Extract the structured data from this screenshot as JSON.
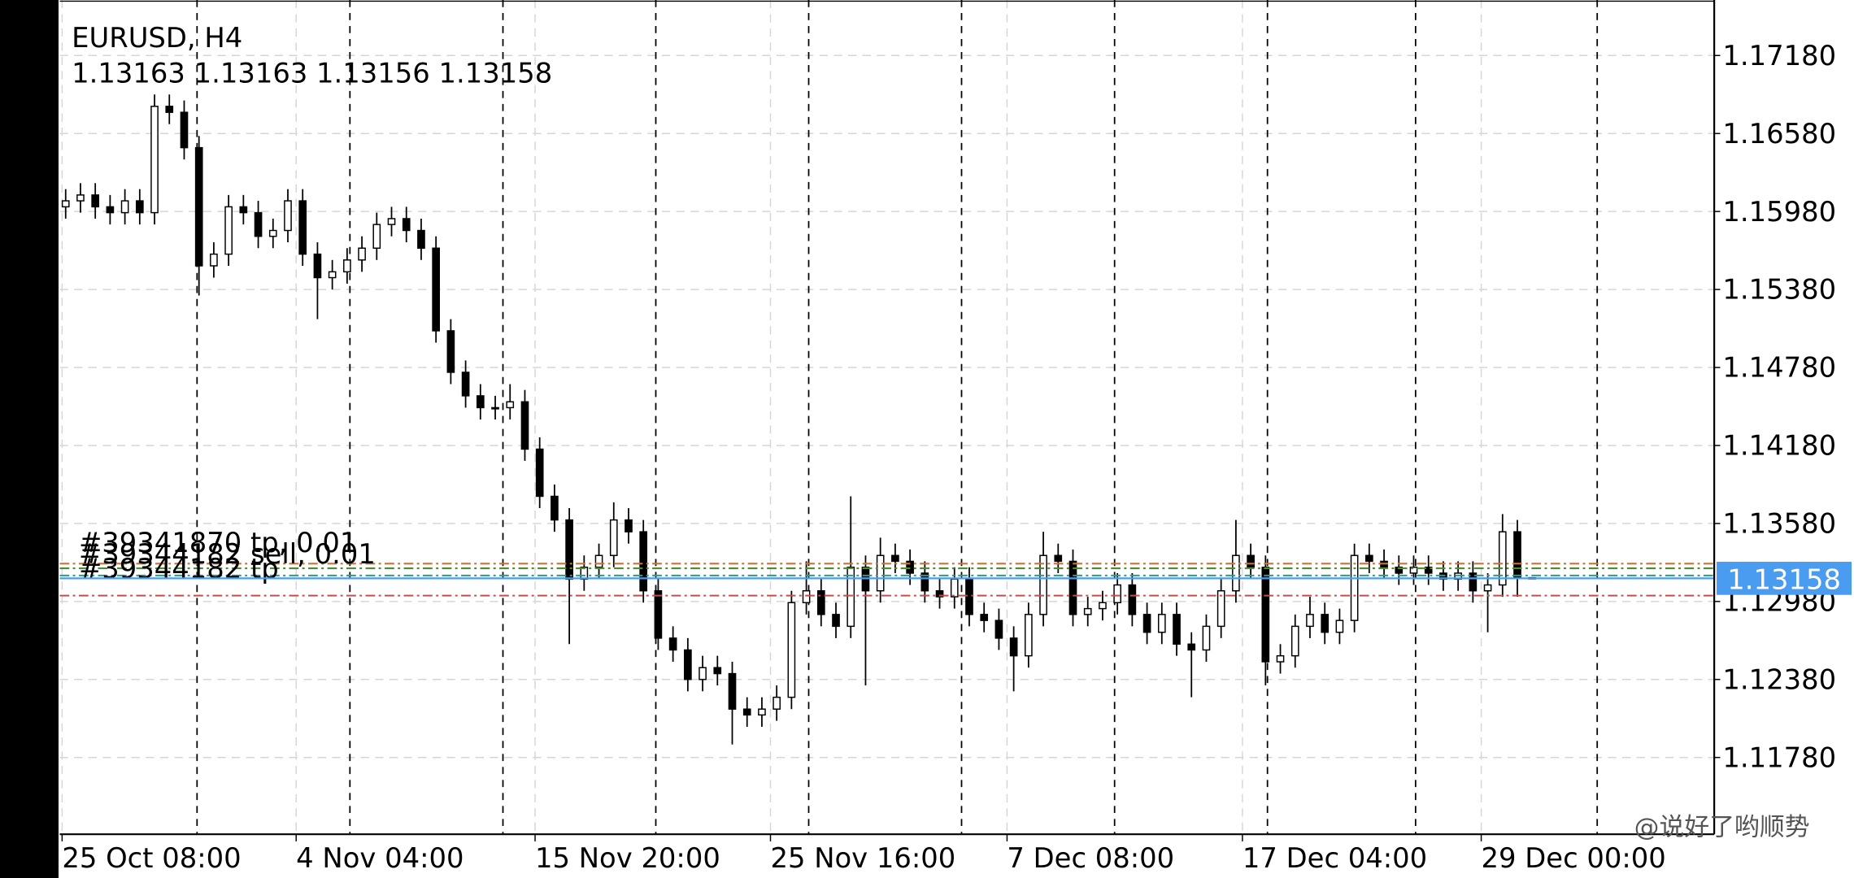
{
  "chart_data": {
    "type": "candlestick",
    "title": "EURUSD, H4",
    "subtitle": "1.13163 1.13163 1.13156 1.13158",
    "open": [
      1.16016,
      1.16062,
      1.16107,
      1.16016,
      1.15971,
      1.16062,
      1.15971,
      1.16789,
      1.16743,
      1.16471,
      1.15562,
      1.15652,
      1.16016,
      1.15971,
      1.15789,
      1.15834,
      1.16062,
      1.15652,
      1.15471,
      1.15516,
      1.15607,
      1.15698,
      1.1588,
      1.15925,
      1.15834,
      1.15698,
      1.15062,
      1.14743,
      1.14562,
      1.14471,
      1.14471,
      1.14516,
      1.14152,
      1.13789,
      1.13607,
      1.13152,
      1.13243,
      1.13334,
      1.13607,
      1.13516,
      1.13062,
      1.12698,
      1.12607,
      1.1238,
      1.12471,
      1.12425,
      1.12152,
      1.12107,
      1.12152,
      1.12243,
      1.12971,
      1.13062,
      1.1288,
      1.12789,
      1.13243,
      1.13062,
      1.13334,
      1.13289,
      1.13198,
      1.13062,
      1.13016,
      1.13152,
      1.1288,
      1.12834,
      1.12698,
      1.12562,
      1.1288,
      1.13334,
      1.13289,
      1.1288,
      1.12925,
      1.12971,
      1.13107,
      1.1288,
      1.12743,
      1.1288,
      1.12652,
      1.12607,
      1.12789,
      1.13062,
      1.13334,
      1.13243,
      1.12516,
      1.12562,
      1.12789,
      1.1288,
      1.12743,
      1.12834,
      1.13334,
      1.13289,
      1.13243,
      1.13198,
      1.13243,
      1.13198,
      1.13152,
      1.13198,
      1.13062,
      1.13107,
      1.13516,
      1.13163
    ],
    "high": [
      1.16152,
      1.16198,
      1.16198,
      1.16107,
      1.16152,
      1.16152,
      1.1688,
      1.1688,
      1.16834,
      1.16561,
      1.15743,
      1.16107,
      1.16107,
      1.16062,
      1.15925,
      1.16152,
      1.16152,
      1.15743,
      1.15607,
      1.15698,
      1.15789,
      1.15971,
      1.16016,
      1.16016,
      1.15925,
      1.15789,
      1.15152,
      1.14834,
      1.14652,
      1.14562,
      1.14652,
      1.14607,
      1.14243,
      1.1388,
      1.13698,
      1.13334,
      1.13425,
      1.13743,
      1.13698,
      1.13607,
      1.13152,
      1.12789,
      1.12698,
      1.12562,
      1.12562,
      1.12516,
      1.12243,
      1.12243,
      1.12334,
      1.13062,
      1.13289,
      1.13152,
      1.12971,
      1.13789,
      1.13334,
      1.13471,
      1.13425,
      1.1338,
      1.13289,
      1.13152,
      1.13243,
      1.13243,
      1.12971,
      1.12925,
      1.12789,
      1.12971,
      1.13516,
      1.13425,
      1.1338,
      1.13016,
      1.13062,
      1.13198,
      1.13198,
      1.12971,
      1.12971,
      1.12971,
      1.12743,
      1.1288,
      1.13152,
      1.13607,
      1.13425,
      1.13334,
      1.12652,
      1.1288,
      1.13016,
      1.12971,
      1.12925,
      1.13425,
      1.13425,
      1.1338,
      1.13334,
      1.13334,
      1.13334,
      1.13289,
      1.13289,
      1.13289,
      1.13198,
      1.13652,
      1.13607,
      1.13163
    ],
    "low": [
      1.15925,
      1.15971,
      1.15925,
      1.1588,
      1.1588,
      1.1588,
      1.1588,
      1.16652,
      1.1638,
      1.15334,
      1.15471,
      1.15562,
      1.1588,
      1.15698,
      1.15698,
      1.15743,
      1.15562,
      1.15152,
      1.1538,
      1.15425,
      1.15516,
      1.15607,
      1.15789,
      1.15743,
      1.15607,
      1.14971,
      1.14652,
      1.14471,
      1.1438,
      1.1438,
      1.1438,
      1.14062,
      1.13698,
      1.13516,
      1.12652,
      1.13062,
      1.13152,
      1.13243,
      1.13425,
      1.12971,
      1.12607,
      1.12516,
      1.12289,
      1.12289,
      1.12334,
      1.1188,
      1.12016,
      1.12016,
      1.12062,
      1.12152,
      1.1288,
      1.12789,
      1.12698,
      1.12698,
      1.12334,
      1.12971,
      1.13198,
      1.13107,
      1.12971,
      1.12925,
      1.12925,
      1.12789,
      1.12743,
      1.12607,
      1.12289,
      1.12471,
      1.12789,
      1.13198,
      1.12789,
      1.12789,
      1.12834,
      1.1288,
      1.12789,
      1.12652,
      1.12652,
      1.12562,
      1.12243,
      1.12516,
      1.12698,
      1.12971,
      1.13152,
      1.12334,
      1.12425,
      1.12471,
      1.12698,
      1.12652,
      1.12652,
      1.12743,
      1.13198,
      1.13152,
      1.13107,
      1.13107,
      1.13107,
      1.13062,
      1.13062,
      1.12971,
      1.12743,
      1.13016,
      1.13016,
      1.13156
    ],
    "close": [
      1.16062,
      1.16107,
      1.16016,
      1.15971,
      1.16062,
      1.15971,
      1.16789,
      1.16743,
      1.16471,
      1.15562,
      1.15652,
      1.16016,
      1.15971,
      1.15789,
      1.15834,
      1.16062,
      1.15652,
      1.15471,
      1.15516,
      1.15607,
      1.15698,
      1.1588,
      1.15925,
      1.15834,
      1.15698,
      1.15062,
      1.14743,
      1.14562,
      1.14471,
      1.14471,
      1.14516,
      1.14152,
      1.13789,
      1.13607,
      1.13152,
      1.13243,
      1.13334,
      1.13607,
      1.13516,
      1.13062,
      1.12698,
      1.12607,
      1.1238,
      1.12471,
      1.12425,
      1.12152,
      1.12107,
      1.12152,
      1.12243,
      1.12971,
      1.13062,
      1.1288,
      1.12789,
      1.13243,
      1.13062,
      1.13334,
      1.13289,
      1.13198,
      1.13062,
      1.13016,
      1.13152,
      1.1288,
      1.12834,
      1.12698,
      1.12562,
      1.1288,
      1.13334,
      1.13289,
      1.1288,
      1.12925,
      1.12971,
      1.13107,
      1.1288,
      1.12743,
      1.1288,
      1.12652,
      1.12607,
      1.12789,
      1.13062,
      1.13334,
      1.13243,
      1.12516,
      1.12562,
      1.12789,
      1.1288,
      1.12743,
      1.12834,
      1.13334,
      1.13289,
      1.13243,
      1.13198,
      1.13243,
      1.13198,
      1.13152,
      1.13198,
      1.13062,
      1.13107,
      1.13516,
      1.13163,
      1.13158
    ],
    "color": "#000000",
    "xlim": [
      -0.4,
      111.29
    ],
    "xticks": [
      {
        "value": -0.24,
        "label": "25 Oct 08:00"
      },
      {
        "value": 15.56,
        "label": "4 Nov 04:00"
      },
      {
        "value": 31.69,
        "label": "15 Nov 20:00"
      },
      {
        "value": 47.58,
        "label": "25 Nov 16:00"
      },
      {
        "value": 63.55,
        "label": "7 Dec 08:00"
      },
      {
        "value": 79.44,
        "label": "17 Dec 04:00"
      },
      {
        "value": 95.56,
        "label": "29 Dec 00:00"
      }
    ],
    "separators": [
      8.87,
      19.19,
      29.52,
      39.84,
      50.16,
      60.48,
      70.81,
      81.13,
      91.13,
      103.39
    ],
    "ylim": [
      1.11189,
      1.17607
    ],
    "yticks": [
      {
        "value": 1.1718,
        "label": "1.17180"
      },
      {
        "value": 1.1658,
        "label": "1.16580"
      },
      {
        "value": 1.1598,
        "label": "1.15980"
      },
      {
        "value": 1.1538,
        "label": "1.15380"
      },
      {
        "value": 1.1478,
        "label": "1.14780"
      },
      {
        "value": 1.1418,
        "label": "1.14180"
      },
      {
        "value": 1.1358,
        "label": "1.13580"
      },
      {
        "value": 1.1298,
        "label": "1.12980"
      },
      {
        "value": 1.1238,
        "label": "1.12380"
      },
      {
        "value": 1.1178,
        "label": "1.11780"
      }
    ],
    "grid": true,
    "order_lines": [
      {
        "label": "#39341870 tp, 0.01",
        "price": 1.13271,
        "color": "#c87533"
      },
      {
        "label": "#39344182 sell, 0.01",
        "price": 1.13235,
        "color": "#4f8a3c"
      },
      {
        "label": "#39344182 tp",
        "price": 1.1318,
        "color": "#2f9a8a"
      },
      {
        "price": 1.13025,
        "color": "#c0504d"
      }
    ],
    "bid": 1.13158,
    "bid_color": "#4a9cf0"
  },
  "watermark": "@说好了哟顺势"
}
